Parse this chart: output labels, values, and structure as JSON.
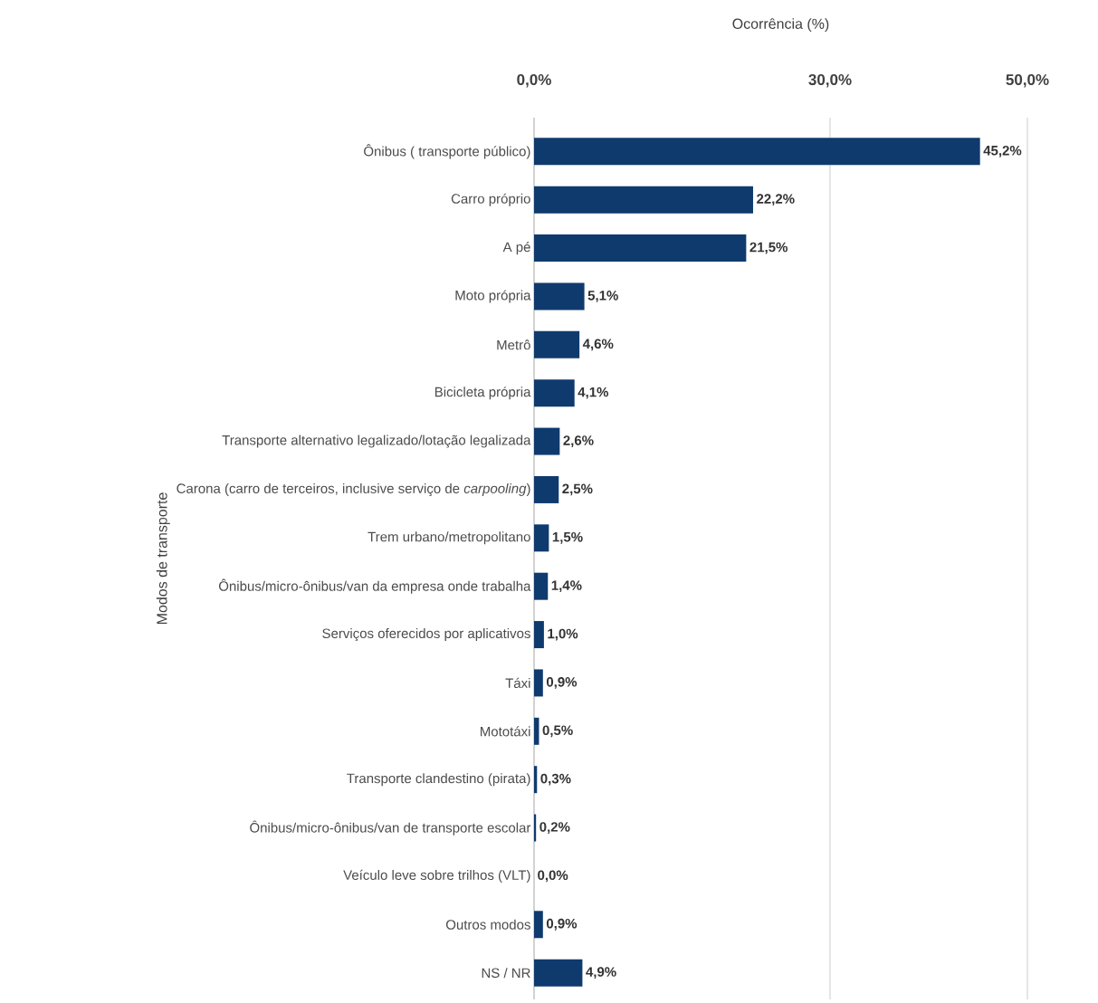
{
  "chart_data": {
    "type": "bar",
    "orientation": "horizontal",
    "xlabel": "Ocorrência (%)",
    "ylabel": "Modos de transporte",
    "categories": [
      "Ônibus ( transporte público)",
      "Carro próprio",
      "A pé",
      "Moto própria",
      "Metrô",
      "Bicicleta própria",
      "Transporte alternativo legalizado/lotação legalizada",
      "Carona (carro de terceiros, inclusive serviço de *carpooling*)",
      "Trem urbano/metropolitano",
      "Ônibus/micro-ônibus/van da empresa onde trabalha",
      "Serviços oferecidos por aplicativos",
      "Táxi",
      "Mototáxi",
      "Transporte clandestino (pirata)",
      "Ônibus/micro-ônibus/van de transporte escolar",
      "Veículo leve sobre trilhos (VLT)",
      "Outros modos",
      "NS / NR"
    ],
    "values": [
      45.2,
      22.2,
      21.5,
      5.1,
      4.6,
      4.1,
      2.6,
      2.5,
      1.5,
      1.4,
      1.0,
      0.9,
      0.5,
      0.3,
      0.2,
      0.0,
      0.9,
      4.9
    ],
    "value_labels": [
      "45,2%",
      "22,2%",
      "21,5%",
      "5,1%",
      "4,6%",
      "4,1%",
      "2,6%",
      "2,5%",
      "1,5%",
      "1,4%",
      "1,0%",
      "0,9%",
      "0,5%",
      "0,3%",
      "0,2%",
      "0,0%",
      "0,9%",
      "4,9%"
    ],
    "color": "#0f3a6e",
    "xlim": [
      0,
      50
    ],
    "xticks": [
      {
        "value": 0,
        "label": "0,0%"
      },
      {
        "value": 30,
        "label": "30,0%"
      },
      {
        "value": 50,
        "label": "50,0%"
      }
    ],
    "grid": "x"
  }
}
